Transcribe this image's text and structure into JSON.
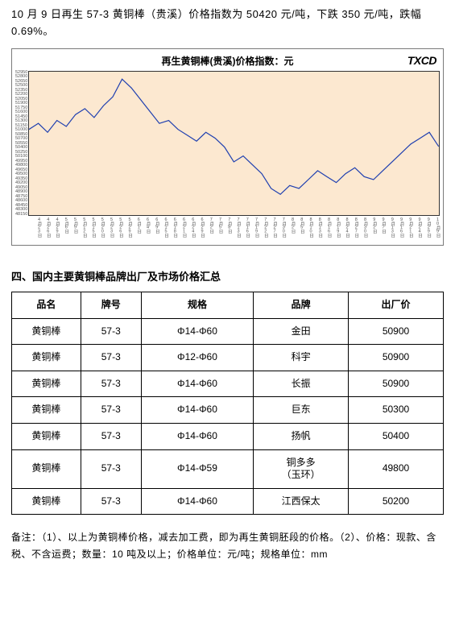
{
  "intro": "10 月 9 日再生 57-3 黄铜棒（贵溪）价格指数为 50420 元/吨，下跌 350 元/吨，跌幅 0.69%。",
  "chart": {
    "title": "再生黄铜棒(贵溪)价格指数：元",
    "logo": "TXCD",
    "type": "line",
    "line_color": "#2040b0",
    "line_width": 1.2,
    "plot_bg": "#fce8d0",
    "border_color": "#333333",
    "ylim": [
      48100,
      52950
    ],
    "ytick_step": 150,
    "yticks": [
      "52950",
      "52800",
      "52650",
      "52500",
      "52350",
      "52200",
      "52050",
      "51900",
      "51750",
      "51600",
      "51450",
      "51300",
      "51150",
      "51000",
      "50850",
      "50700",
      "50550",
      "50400",
      "50250",
      "50100",
      "49950",
      "49800",
      "49650",
      "49500",
      "49350",
      "49200",
      "49050",
      "48900",
      "48750",
      "48600",
      "48450",
      "48300",
      "48150"
    ],
    "xticks": [
      "4月23日",
      "4月26日",
      "4月29日",
      "5月6日",
      "5月9日",
      "5月12日",
      "5月15日",
      "5月20日",
      "5月23日",
      "5月26日",
      "5月29日",
      "6月1日",
      "6月4日",
      "6月9日",
      "6月15日",
      "6月18日",
      "6月21日",
      "6月24日",
      "6月29日",
      "7月2日",
      "7月5日",
      "7月8日",
      "7月13日",
      "7月16日",
      "7月19日",
      "7月22日",
      "7月27日",
      "7月30日",
      "8月2日",
      "8月5日",
      "8月10日",
      "8月13日",
      "8月16日",
      "8月19日",
      "8月24日",
      "8月27日",
      "8月30日",
      "9月2日",
      "9月7日",
      "9月13日",
      "9月16日",
      "9月21日",
      "9月24日",
      "9月29日",
      "10月9日"
    ],
    "values": [
      51000,
      51200,
      50900,
      51300,
      51100,
      51500,
      51700,
      51400,
      51800,
      52100,
      52700,
      52400,
      52000,
      51600,
      51200,
      51300,
      51000,
      50800,
      50600,
      50900,
      50700,
      50400,
      49900,
      50100,
      49800,
      49500,
      49000,
      48800,
      49100,
      49000,
      49300,
      49600,
      49400,
      49200,
      49500,
      49700,
      49400,
      49300,
      49600,
      49900,
      50200,
      50500,
      50700,
      50900,
      50420
    ]
  },
  "section_heading": "四、国内主要黄铜棒品牌出厂及市场价格汇总",
  "table": {
    "headers": {
      "name": "品名",
      "model": "牌号",
      "spec": "规格",
      "brand": "品牌",
      "price": "出厂价"
    },
    "rows": [
      {
        "name": "黄铜棒",
        "model": "57-3",
        "spec": "Φ14-Φ60",
        "brand": "金田",
        "price": "50900"
      },
      {
        "name": "黄铜棒",
        "model": "57-3",
        "spec": "Φ12-Φ60",
        "brand": "科宇",
        "price": "50900"
      },
      {
        "name": "黄铜棒",
        "model": "57-3",
        "spec": "Φ14-Φ60",
        "brand": "长振",
        "price": "50900"
      },
      {
        "name": "黄铜棒",
        "model": "57-3",
        "spec": "Φ14-Φ60",
        "brand": "巨东",
        "price": "50300"
      },
      {
        "name": "黄铜棒",
        "model": "57-3",
        "spec": "Φ14-Φ60",
        "brand": "扬帆",
        "price": "50400"
      },
      {
        "name": "黄铜棒",
        "model": "57-3",
        "spec": "Φ14-Φ59",
        "brand": "铜多多\n（玉环）",
        "price": "49800"
      },
      {
        "name": "黄铜棒",
        "model": "57-3",
        "spec": "Φ14-Φ60",
        "brand": "江西保太",
        "price": "50200"
      }
    ]
  },
  "notes": "备注：（1）、以上为黄铜棒价格，减去加工费，即为再生黄铜胚段的价格。（2）、价格：现款、含税、不含运费；数量：10 吨及以上；价格单位：元/吨；规格单位：mm"
}
